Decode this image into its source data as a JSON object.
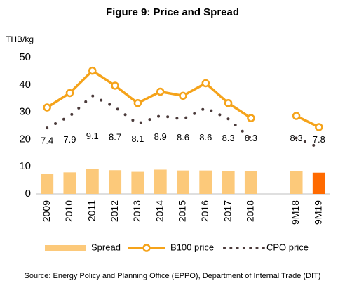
{
  "chart_data": {
    "type": "bar-line",
    "title": "Figure 9: Price and Spread",
    "y_label": "THB/kg",
    "source": "Source:  Energy Policy and Planning Office (EPPO), Department of Internal Trade (DIT)",
    "categories": [
      "2009",
      "2010",
      "2011",
      "2012",
      "2013",
      "2014",
      "2015",
      "2016",
      "2017",
      "2018",
      null,
      "9M18",
      "9M19"
    ],
    "series": [
      {
        "name": "Spread",
        "kind": "bar",
        "color": "#fcc97a",
        "colors": [
          "#fcc97a",
          "#fcc97a",
          "#fcc97a",
          "#fcc97a",
          "#fcc97a",
          "#fcc97a",
          "#fcc97a",
          "#fcc97a",
          "#fcc97a",
          "#fcc97a",
          null,
          "#fcc97a",
          "#ff6a00"
        ],
        "values": [
          7.4,
          7.9,
          9.1,
          8.7,
          8.1,
          8.9,
          8.6,
          8.6,
          8.3,
          8.3,
          null,
          8.3,
          7.8
        ]
      },
      {
        "name": "B100 price",
        "kind": "line-marker",
        "color": "#f5a31a",
        "values": [
          31.7,
          37,
          45.2,
          39.7,
          33.3,
          37.5,
          36,
          40.6,
          33.3,
          27.8,
          null,
          28.6,
          24.5
        ]
      },
      {
        "name": "CPO price",
        "kind": "dotted",
        "color": "#4a3a3a",
        "values": [
          24.2,
          28.5,
          36,
          31.8,
          25.7,
          28.7,
          27.4,
          31.5,
          27.5,
          20.3,
          null,
          20.5,
          17
        ]
      }
    ],
    "ylim": [
      0,
      50
    ],
    "yticks": [
      0,
      10,
      20,
      30,
      40,
      50
    ],
    "grid": false
  }
}
